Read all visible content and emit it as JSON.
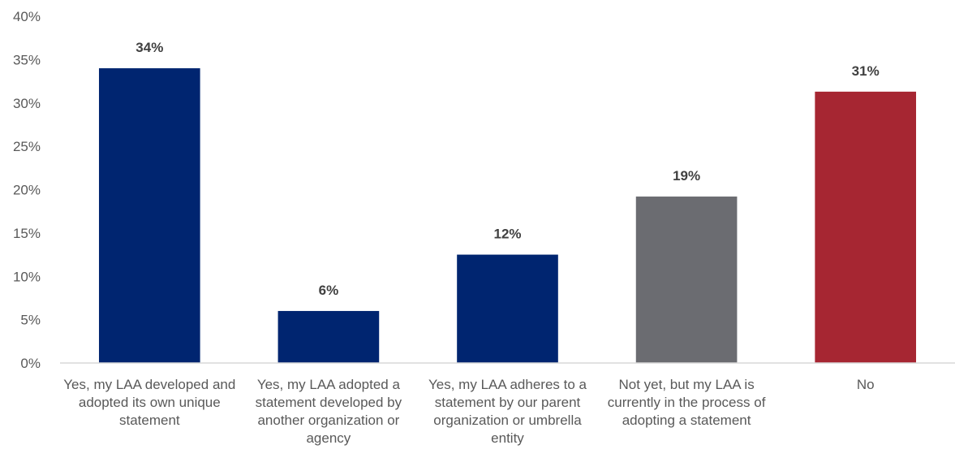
{
  "chart_data": {
    "type": "bar",
    "categories": [
      "Yes, my LAA developed and adopted its own unique statement",
      "Yes, my LAA adopted a statement developed by another organization or agency",
      "Yes, my LAA adheres to a statement by our parent organization or umbrella entity",
      "Not yet, but my LAA is currently in the process of adopting a statement",
      "No"
    ],
    "values": [
      34,
      6,
      12.5,
      19.2,
      31.3
    ],
    "value_labels": [
      "34%",
      "6%",
      "12%",
      "19%",
      "31%"
    ],
    "colors": [
      "#002570",
      "#002570",
      "#002570",
      "#6b6c71",
      "#a62632"
    ],
    "ylim": [
      0,
      40
    ],
    "yticks": [
      0,
      5,
      10,
      15,
      20,
      25,
      30,
      35,
      40
    ],
    "ytick_labels": [
      "0%",
      "5%",
      "10%",
      "15%",
      "20%",
      "25%",
      "30%",
      "35%",
      "40%"
    ],
    "grid": false,
    "legend": "none",
    "title": "",
    "xlabel": "",
    "ylabel": ""
  }
}
